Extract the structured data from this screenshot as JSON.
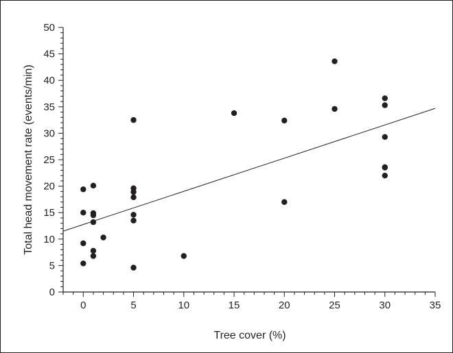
{
  "chart_data": {
    "type": "scatter",
    "title": "",
    "xlabel": "Tree cover (%)",
    "ylabel": "Total head movement rate (events/min)",
    "xlim": [
      -2,
      35
    ],
    "ylim": [
      0,
      50
    ],
    "x_ticks": [
      0,
      5,
      10,
      15,
      20,
      25,
      30,
      35
    ],
    "y_ticks": [
      0,
      5,
      10,
      15,
      20,
      25,
      30,
      35,
      40,
      45,
      50
    ],
    "grid": false,
    "series": [
      {
        "points": [
          {
            "x": 0,
            "y": 19.4
          },
          {
            "x": 0,
            "y": 15.0
          },
          {
            "x": 0,
            "y": 9.2
          },
          {
            "x": 0,
            "y": 5.4
          },
          {
            "x": 1,
            "y": 20.1
          },
          {
            "x": 1,
            "y": 14.9
          },
          {
            "x": 1,
            "y": 14.5
          },
          {
            "x": 1,
            "y": 13.2
          },
          {
            "x": 1,
            "y": 7.8
          },
          {
            "x": 1,
            "y": 6.8
          },
          {
            "x": 2,
            "y": 10.3
          },
          {
            "x": 5,
            "y": 32.5
          },
          {
            "x": 5,
            "y": 19.6
          },
          {
            "x": 5,
            "y": 18.9
          },
          {
            "x": 5,
            "y": 17.9
          },
          {
            "x": 5,
            "y": 14.6
          },
          {
            "x": 5,
            "y": 13.5
          },
          {
            "x": 5,
            "y": 4.6
          },
          {
            "x": 10,
            "y": 6.8
          },
          {
            "x": 15,
            "y": 33.8
          },
          {
            "x": 20,
            "y": 32.4
          },
          {
            "x": 20,
            "y": 17.0
          },
          {
            "x": 25,
            "y": 43.6
          },
          {
            "x": 25,
            "y": 34.6
          },
          {
            "x": 30,
            "y": 36.6
          },
          {
            "x": 30,
            "y": 35.3
          },
          {
            "x": 30,
            "y": 29.3
          },
          {
            "x": 30,
            "y": 23.6
          },
          {
            "x": 30,
            "y": 23.5
          },
          {
            "x": 30,
            "y": 22.0
          }
        ]
      }
    ],
    "trendline": {
      "x": [
        -2,
        35
      ],
      "y": [
        11.5,
        34.7
      ]
    },
    "colors": {
      "marker": "#231f20",
      "line": "#231f20",
      "axis": "#231f20"
    }
  }
}
